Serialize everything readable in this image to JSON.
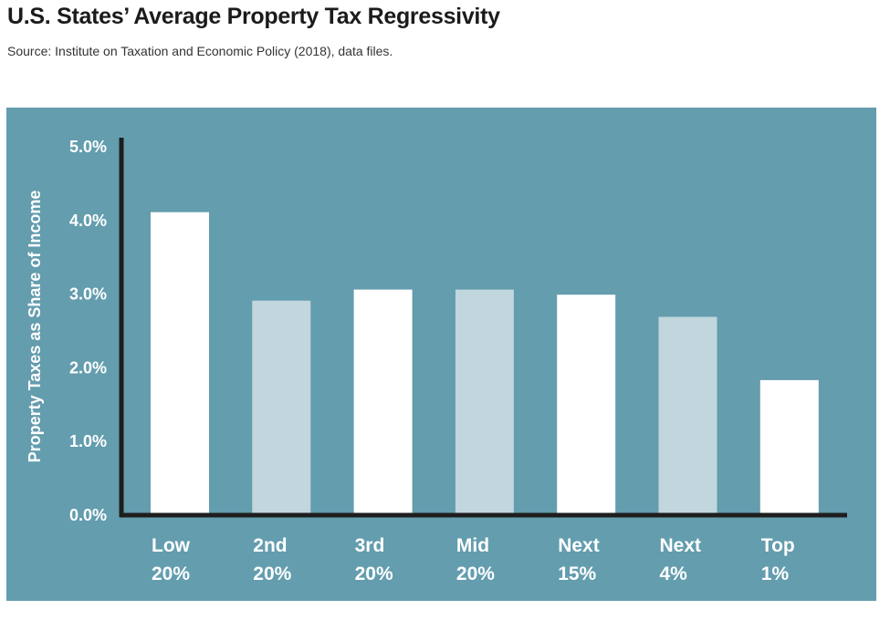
{
  "header": {
    "title": "U.S. States’ Average Property Tax Regressivity",
    "source": "Source: Institute on Taxation and Economic Policy (2018), data files."
  },
  "colors": {
    "panel_bg": "#639dae",
    "bar_primary": "#ffffff",
    "bar_secondary": "#c1d6dd",
    "axis": "#1e1e1e",
    "label_text": "#ffffff"
  },
  "chart_data": {
    "type": "bar",
    "title": "",
    "ylabel": "Property Taxes as Share of Income",
    "xlabel": "",
    "ylim": [
      0,
      5
    ],
    "yticks": [
      "0.0%",
      "1.0%",
      "2.0%",
      "3.0%",
      "4.0%",
      "5.0%"
    ],
    "grid": false,
    "categories": [
      [
        "Low",
        "20%"
      ],
      [
        "2nd",
        "20%"
      ],
      [
        "3rd",
        "20%"
      ],
      [
        "Mid",
        "20%"
      ],
      [
        "Next",
        "15%"
      ],
      [
        "Next",
        "4%"
      ],
      [
        "Top",
        "1%"
      ]
    ],
    "values": [
      4.1,
      2.9,
      3.05,
      3.05,
      2.98,
      2.68,
      1.82
    ],
    "bar_color_keys": [
      "bar_primary",
      "bar_secondary",
      "bar_primary",
      "bar_secondary",
      "bar_primary",
      "bar_secondary",
      "bar_primary"
    ]
  }
}
